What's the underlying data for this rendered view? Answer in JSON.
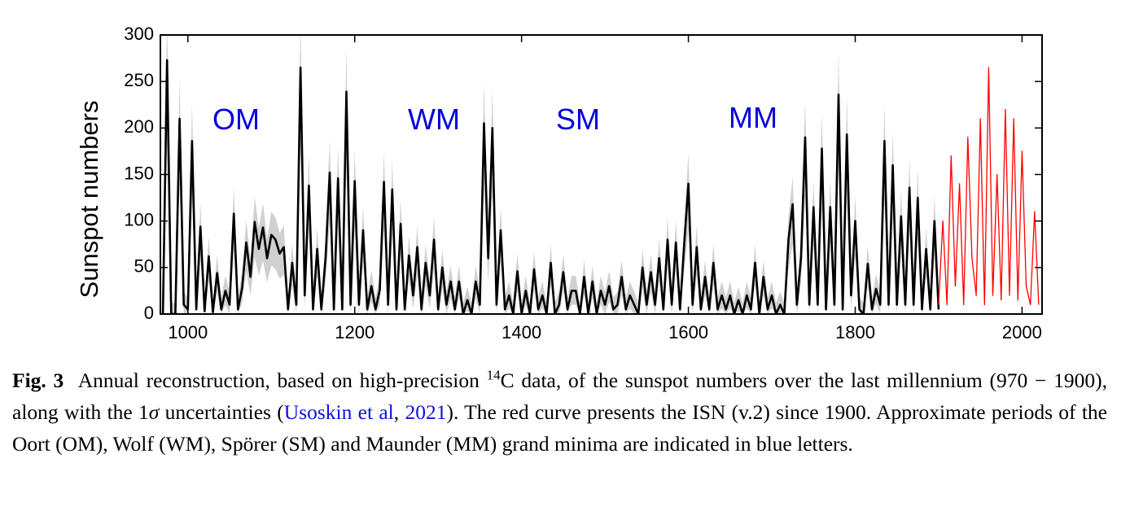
{
  "chart_data": {
    "type": "line",
    "ylabel": "Sunspot numbers",
    "xlim": [
      967,
      2024
    ],
    "ylim": [
      0,
      300
    ],
    "xticks": [
      1000,
      1200,
      1400,
      1600,
      1800,
      2000
    ],
    "yticks": [
      0,
      50,
      100,
      150,
      200,
      250,
      300
    ],
    "annotations": [
      "OM",
      "WM",
      "SM",
      "MM"
    ],
    "annotation_color": "#0000dd",
    "series": [
      {
        "color": "#000000",
        "band_color": "#d0d0d0",
        "x": [
          970,
          975,
          980,
          985,
          990,
          995,
          1000,
          1005,
          1010,
          1015,
          1020,
          1025,
          1030,
          1035,
          1040,
          1045,
          1050,
          1055,
          1060,
          1065,
          1070,
          1075,
          1080,
          1085,
          1090,
          1095,
          1100,
          1105,
          1110,
          1115,
          1120,
          1125,
          1130,
          1135,
          1140,
          1145,
          1150,
          1155,
          1160,
          1165,
          1170,
          1175,
          1180,
          1185,
          1190,
          1195,
          1200,
          1205,
          1210,
          1215,
          1220,
          1225,
          1230,
          1235,
          1240,
          1245,
          1250,
          1255,
          1260,
          1265,
          1270,
          1275,
          1280,
          1285,
          1290,
          1295,
          1300,
          1305,
          1310,
          1315,
          1320,
          1325,
          1330,
          1335,
          1340,
          1345,
          1350,
          1355,
          1360,
          1365,
          1370,
          1375,
          1380,
          1385,
          1390,
          1395,
          1400,
          1405,
          1410,
          1415,
          1420,
          1425,
          1430,
          1435,
          1440,
          1445,
          1450,
          1455,
          1460,
          1465,
          1470,
          1475,
          1480,
          1485,
          1490,
          1495,
          1500,
          1505,
          1510,
          1515,
          1520,
          1525,
          1530,
          1535,
          1540,
          1545,
          1550,
          1555,
          1560,
          1565,
          1570,
          1575,
          1580,
          1585,
          1590,
          1595,
          1600,
          1605,
          1610,
          1615,
          1620,
          1625,
          1630,
          1635,
          1640,
          1645,
          1650,
          1655,
          1660,
          1665,
          1670,
          1675,
          1680,
          1685,
          1690,
          1695,
          1700,
          1705,
          1710,
          1715,
          1720,
          1725,
          1730,
          1735,
          1740,
          1745,
          1750,
          1755,
          1760,
          1765,
          1770,
          1775,
          1780,
          1785,
          1790,
          1795,
          1800,
          1805,
          1810,
          1815,
          1820,
          1825,
          1830,
          1835,
          1840,
          1845,
          1850,
          1855,
          1860,
          1865,
          1870,
          1875,
          1880,
          1885,
          1890,
          1895,
          1900
        ],
        "values": [
          0,
          273,
          0,
          0,
          210,
          10,
          5,
          186,
          5,
          94,
          3,
          62,
          2,
          44,
          5,
          25,
          10,
          108,
          5,
          28,
          77,
          40,
          99,
          70,
          93,
          60,
          85,
          80,
          65,
          72,
          5,
          55,
          10,
          265,
          20,
          138,
          5,
          70,
          5,
          60,
          152,
          5,
          146,
          5,
          239,
          10,
          143,
          10,
          90,
          5,
          30,
          5,
          26,
          142,
          10,
          134,
          5,
          97,
          5,
          63,
          20,
          72,
          5,
          55,
          20,
          80,
          5,
          50,
          10,
          35,
          5,
          35,
          0,
          15,
          0,
          35,
          10,
          205,
          60,
          200,
          10,
          90,
          5,
          20,
          0,
          46,
          0,
          25,
          0,
          48,
          5,
          20,
          0,
          55,
          0,
          10,
          45,
          5,
          25,
          25,
          0,
          40,
          0,
          35,
          0,
          25,
          10,
          30,
          5,
          10,
          40,
          5,
          20,
          10,
          0,
          50,
          10,
          45,
          10,
          60,
          5,
          80,
          10,
          77,
          5,
          75,
          140,
          10,
          72,
          5,
          40,
          5,
          55,
          5,
          20,
          5,
          20,
          0,
          15,
          0,
          20,
          5,
          55,
          0,
          40,
          5,
          20,
          0,
          10,
          0,
          80,
          118,
          10,
          60,
          190,
          10,
          115,
          10,
          178,
          5,
          115,
          10,
          236,
          5,
          193,
          20,
          100,
          5,
          0,
          54,
          5,
          27,
          10,
          186,
          10,
          160,
          10,
          105,
          10,
          136,
          10,
          125,
          5,
          70,
          5,
          100,
          5
        ],
        "upper": [
          12,
          326,
          12,
          12,
          254,
          24,
          18,
          226,
          18,
          120,
          15,
          83,
          14,
          63,
          18,
          41,
          24,
          136,
          18,
          44,
          101,
          58,
          126,
          93,
          119,
          81,
          110,
          104,
          87,
          95,
          18,
          75,
          24,
          317,
          35,
          171,
          18,
          93,
          18,
          81,
          187,
          18,
          180,
          18,
          287,
          24,
          176,
          24,
          116,
          18,
          47,
          18,
          42,
          175,
          24,
          166,
          18,
          124,
          18,
          84,
          35,
          95,
          18,
          75,
          35,
          104,
          18,
          70,
          24,
          52,
          18,
          52,
          12,
          29,
          12,
          52,
          24,
          248,
          81,
          242,
          24,
          116,
          18,
          35,
          12,
          65,
          12,
          41,
          12,
          67,
          18,
          35,
          12,
          75,
          12,
          24,
          64,
          18,
          41,
          41,
          12,
          58,
          12,
          52,
          12,
          41,
          24,
          47,
          18,
          24,
          58,
          18,
          35,
          24,
          12,
          70,
          24,
          64,
          24,
          81,
          18,
          104,
          24,
          101,
          18,
          98,
          173,
          24,
          95,
          18,
          58,
          18,
          75,
          18,
          35,
          18,
          35,
          12,
          29,
          12,
          35,
          18,
          75,
          12,
          58,
          18,
          35,
          12,
          24,
          12,
          104,
          148,
          24,
          81,
          231,
          24,
          144,
          24,
          217,
          18,
          144,
          24,
          283,
          18,
          234,
          35,
          127,
          18,
          12,
          74,
          18,
          43,
          24,
          226,
          24,
          196,
          24,
          133,
          24,
          168,
          24,
          156,
          18,
          93,
          18,
          127,
          18
        ],
        "lower": [
          0,
          183,
          0,
          0,
          139,
          0,
          0,
          122,
          0,
          58,
          0,
          35,
          0,
          23,
          0,
          10,
          0,
          68,
          0,
          12,
          46,
          20,
          61,
          41,
          57,
          34,
          52,
          48,
          38,
          42,
          0,
          31,
          0,
          178,
          6,
          89,
          0,
          41,
          0,
          34,
          98,
          0,
          94,
          0,
          159,
          0,
          92,
          0,
          55,
          0,
          13,
          0,
          10,
          91,
          0,
          86,
          0,
          60,
          0,
          36,
          6,
          42,
          0,
          31,
          6,
          48,
          0,
          27,
          0,
          17,
          0,
          17,
          0,
          3,
          0,
          17,
          0,
          136,
          34,
          132,
          0,
          55,
          0,
          6,
          0,
          24,
          0,
          10,
          0,
          26,
          0,
          6,
          0,
          31,
          0,
          0,
          24,
          0,
          10,
          10,
          0,
          20,
          0,
          17,
          0,
          10,
          0,
          13,
          0,
          0,
          20,
          0,
          6,
          0,
          0,
          27,
          0,
          24,
          0,
          34,
          0,
          48,
          0,
          46,
          0,
          45,
          90,
          0,
          42,
          0,
          20,
          0,
          31,
          0,
          6,
          0,
          6,
          0,
          3,
          0,
          6,
          0,
          31,
          0,
          20,
          0,
          6,
          0,
          0,
          0,
          48,
          75,
          0,
          34,
          125,
          0,
          73,
          0,
          117,
          0,
          73,
          0,
          157,
          0,
          127,
          6,
          62,
          0,
          0,
          30,
          0,
          11,
          0,
          122,
          0,
          104,
          0,
          66,
          0,
          87,
          0,
          80,
          0,
          41,
          0,
          62,
          0
        ]
      },
      {
        "color": "#ff0000",
        "x": [
          1900,
          1905,
          1910,
          1915,
          1920,
          1925,
          1930,
          1935,
          1940,
          1945,
          1950,
          1955,
          1960,
          1965,
          1970,
          1975,
          1980,
          1985,
          1990,
          1995,
          2000,
          2005,
          2010,
          2015,
          2020
        ],
        "values": [
          10,
          100,
          10,
          170,
          30,
          140,
          10,
          190,
          60,
          20,
          210,
          10,
          265,
          20,
          150,
          15,
          220,
          20,
          210,
          15,
          175,
          30,
          10,
          110,
          10
        ]
      }
    ]
  },
  "caption": {
    "label": "Fig. 3",
    "parts": [
      "Annual reconstruction, based on high-precision ",
      "14",
      "C data, of the sunspot numbers over the last millennium (970 − 1900), along with the 1",
      "σ",
      " uncertainties (",
      "Usoskin et al",
      ", ",
      "2021",
      "). The red curve presents the ISN (v.2) since 1900. Approximate periods of the Oort (OM), Wolf (WM), Spörer (SM) and Maunder (MM) grand minima are indicated in blue letters."
    ]
  }
}
